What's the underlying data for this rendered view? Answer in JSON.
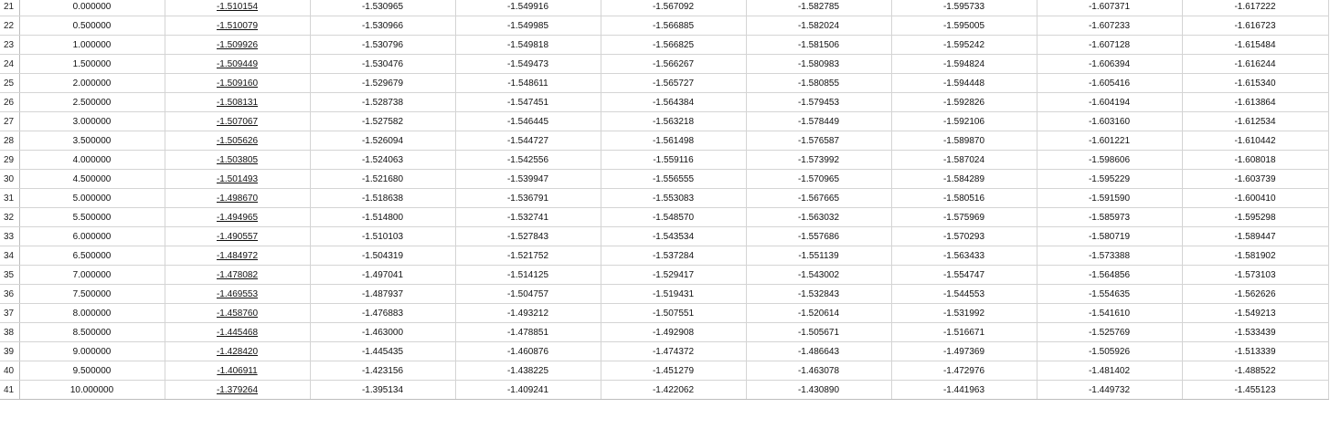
{
  "rows": [
    {
      "row_number": "21",
      "cells": [
        "0.000000",
        "-1.510154",
        "-1.530965",
        "-1.549916",
        "-1.567092",
        "-1.582785",
        "-1.595733",
        "-1.607371",
        "-1.617222"
      ]
    },
    {
      "row_number": "22",
      "cells": [
        "0.500000",
        "-1.510079",
        "-1.530966",
        "-1.549985",
        "-1.566885",
        "-1.582024",
        "-1.595005",
        "-1.607233",
        "-1.616723"
      ]
    },
    {
      "row_number": "23",
      "cells": [
        "1.000000",
        "-1.509926",
        "-1.530796",
        "-1.549818",
        "-1.566825",
        "-1.581506",
        "-1.595242",
        "-1.607128",
        "-1.615484"
      ]
    },
    {
      "row_number": "24",
      "cells": [
        "1.500000",
        "-1.509449",
        "-1.530476",
        "-1.549473",
        "-1.566267",
        "-1.580983",
        "-1.594824",
        "-1.606394",
        "-1.616244"
      ]
    },
    {
      "row_number": "25",
      "cells": [
        "2.000000",
        "-1.509160",
        "-1.529679",
        "-1.548611",
        "-1.565727",
        "-1.580855",
        "-1.594448",
        "-1.605416",
        "-1.615340"
      ]
    },
    {
      "row_number": "26",
      "cells": [
        "2.500000",
        "-1.508131",
        "-1.528738",
        "-1.547451",
        "-1.564384",
        "-1.579453",
        "-1.592826",
        "-1.604194",
        "-1.613864"
      ]
    },
    {
      "row_number": "27",
      "cells": [
        "3.000000",
        "-1.507067",
        "-1.527582",
        "-1.546445",
        "-1.563218",
        "-1.578449",
        "-1.592106",
        "-1.603160",
        "-1.612534"
      ]
    },
    {
      "row_number": "28",
      "cells": [
        "3.500000",
        "-1.505626",
        "-1.526094",
        "-1.544727",
        "-1.561498",
        "-1.576587",
        "-1.589870",
        "-1.601221",
        "-1.610442"
      ]
    },
    {
      "row_number": "29",
      "cells": [
        "4.000000",
        "-1.503805",
        "-1.524063",
        "-1.542556",
        "-1.559116",
        "-1.573992",
        "-1.587024",
        "-1.598606",
        "-1.608018"
      ]
    },
    {
      "row_number": "30",
      "cells": [
        "4.500000",
        "-1.501493",
        "-1.521680",
        "-1.539947",
        "-1.556555",
        "-1.570965",
        "-1.584289",
        "-1.595229",
        "-1.603739"
      ]
    },
    {
      "row_number": "31",
      "cells": [
        "5.000000",
        "-1.498670",
        "-1.518638",
        "-1.536791",
        "-1.553083",
        "-1.567665",
        "-1.580516",
        "-1.591590",
        "-1.600410"
      ]
    },
    {
      "row_number": "32",
      "cells": [
        "5.500000",
        "-1.494965",
        "-1.514800",
        "-1.532741",
        "-1.548570",
        "-1.563032",
        "-1.575969",
        "-1.585973",
        "-1.595298"
      ]
    },
    {
      "row_number": "33",
      "cells": [
        "6.000000",
        "-1.490557",
        "-1.510103",
        "-1.527843",
        "-1.543534",
        "-1.557686",
        "-1.570293",
        "-1.580719",
        "-1.589447"
      ]
    },
    {
      "row_number": "34",
      "cells": [
        "6.500000",
        "-1.484972",
        "-1.504319",
        "-1.521752",
        "-1.537284",
        "-1.551139",
        "-1.563433",
        "-1.573388",
        "-1.581902"
      ]
    },
    {
      "row_number": "35",
      "cells": [
        "7.000000",
        "-1.478082",
        "-1.497041",
        "-1.514125",
        "-1.529417",
        "-1.543002",
        "-1.554747",
        "-1.564856",
        "-1.573103"
      ]
    },
    {
      "row_number": "36",
      "cells": [
        "7.500000",
        "-1.469553",
        "-1.487937",
        "-1.504757",
        "-1.519431",
        "-1.532843",
        "-1.544553",
        "-1.554635",
        "-1.562626"
      ]
    },
    {
      "row_number": "37",
      "cells": [
        "8.000000",
        "-1.458760",
        "-1.476883",
        "-1.493212",
        "-1.507551",
        "-1.520614",
        "-1.531992",
        "-1.541610",
        "-1.549213"
      ]
    },
    {
      "row_number": "38",
      "cells": [
        "8.500000",
        "-1.445468",
        "-1.463000",
        "-1.478851",
        "-1.492908",
        "-1.505671",
        "-1.516671",
        "-1.525769",
        "-1.533439"
      ]
    },
    {
      "row_number": "39",
      "cells": [
        "9.000000",
        "-1.428420",
        "-1.445435",
        "-1.460876",
        "-1.474372",
        "-1.486643",
        "-1.497369",
        "-1.505926",
        "-1.513339"
      ]
    },
    {
      "row_number": "40",
      "cells": [
        "9.500000",
        "-1.406911",
        "-1.423156",
        "-1.438225",
        "-1.451279",
        "-1.463078",
        "-1.472976",
        "-1.481402",
        "-1.488522"
      ]
    },
    {
      "row_number": "41",
      "cells": [
        "10.000000",
        "-1.379264",
        "-1.395134",
        "-1.409241",
        "-1.422062",
        "-1.430890",
        "-1.441963",
        "-1.449732",
        "-1.455123"
      ]
    }
  ]
}
